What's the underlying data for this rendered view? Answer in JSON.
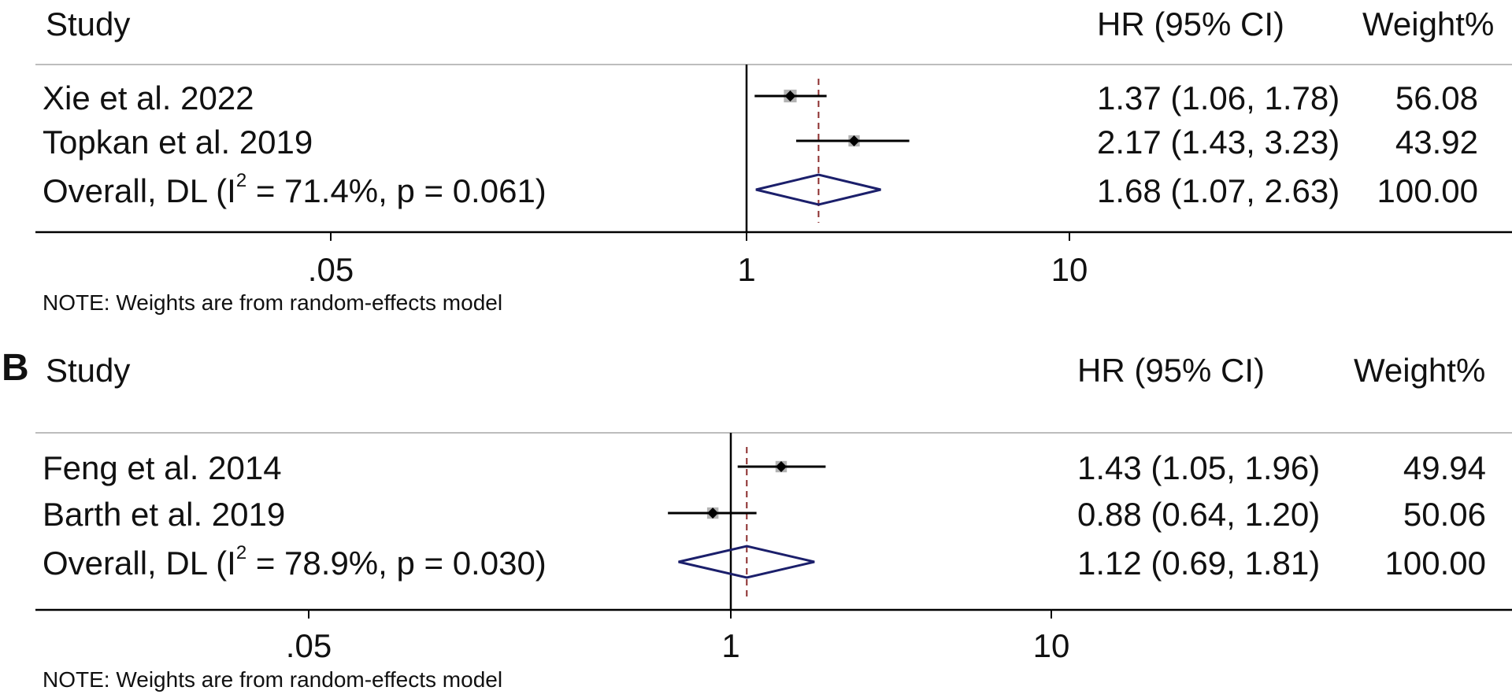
{
  "figure": {
    "panels": [
      {
        "label": "",
        "header": {
          "study": "Study",
          "hr": "HR (95% CI)",
          "weight": "Weight%"
        },
        "rows": [
          {
            "study": "Xie et al. 2022",
            "hr": "1.37 (1.06, 1.78)",
            "weight": "56.08"
          },
          {
            "study": "Topkan et al. 2019",
            "hr": "2.17 (1.43, 3.23)",
            "weight": "43.92"
          }
        ],
        "overall": {
          "prefix": "Overall, DL (I",
          "sup": "2",
          "suffix": " = 71.4%, p = 0.061)",
          "hr": "1.68 (1.07, 2.63)",
          "weight": "100.00"
        },
        "ticks": [
          ".05",
          "1",
          "10"
        ],
        "note": "NOTE: Weights are from random-effects model"
      },
      {
        "label": "B",
        "header": {
          "study": "Study",
          "hr": "HR (95% CI)",
          "weight": "Weight%"
        },
        "rows": [
          {
            "study": "Feng et al. 2014",
            "hr": "1.43 (1.05, 1.96)",
            "weight": "49.94"
          },
          {
            "study": "Barth et al. 2019",
            "hr": "0.88 (0.64, 1.20)",
            "weight": "50.06"
          }
        ],
        "overall": {
          "prefix": "Overall, DL (I",
          "sup": "2",
          "suffix": " = 78.9%, p = 0.030)",
          "hr": "1.12 (0.69, 1.81)",
          "weight": "100.00"
        },
        "ticks": [
          ".05",
          "1",
          "10"
        ],
        "note": "NOTE: Weights are from random-effects model"
      }
    ]
  },
  "chart_data": [
    {
      "type": "forest",
      "x_scale": "log",
      "x_ticks": [
        0.05,
        1,
        10
      ],
      "null_line": 1,
      "studies": [
        {
          "name": "Xie et al. 2022",
          "hr": 1.37,
          "lo": 1.06,
          "hi": 1.78,
          "weight": 56.08
        },
        {
          "name": "Topkan et al. 2019",
          "hr": 2.17,
          "lo": 1.43,
          "hi": 3.23,
          "weight": 43.92
        }
      ],
      "overall": {
        "hr": 1.68,
        "lo": 1.07,
        "hi": 2.63,
        "weight": 100.0,
        "i2": 71.4,
        "p": 0.061
      },
      "colors": {
        "diamond": "#1b1f6b",
        "ref_line": "#8b2c2c",
        "box": "#b3b3b3"
      }
    },
    {
      "type": "forest",
      "x_scale": "log",
      "x_ticks": [
        0.05,
        1,
        10
      ],
      "null_line": 1,
      "studies": [
        {
          "name": "Feng et al. 2014",
          "hr": 1.43,
          "lo": 1.05,
          "hi": 1.96,
          "weight": 49.94
        },
        {
          "name": "Barth et al. 2019",
          "hr": 0.88,
          "lo": 0.64,
          "hi": 1.2,
          "weight": 50.06
        }
      ],
      "overall": {
        "hr": 1.12,
        "lo": 0.69,
        "hi": 1.81,
        "weight": 100.0,
        "i2": 78.9,
        "p": 0.03
      },
      "colors": {
        "diamond": "#1b1f6b",
        "ref_line": "#8b2c2c",
        "box": "#b3b3b3"
      }
    }
  ]
}
